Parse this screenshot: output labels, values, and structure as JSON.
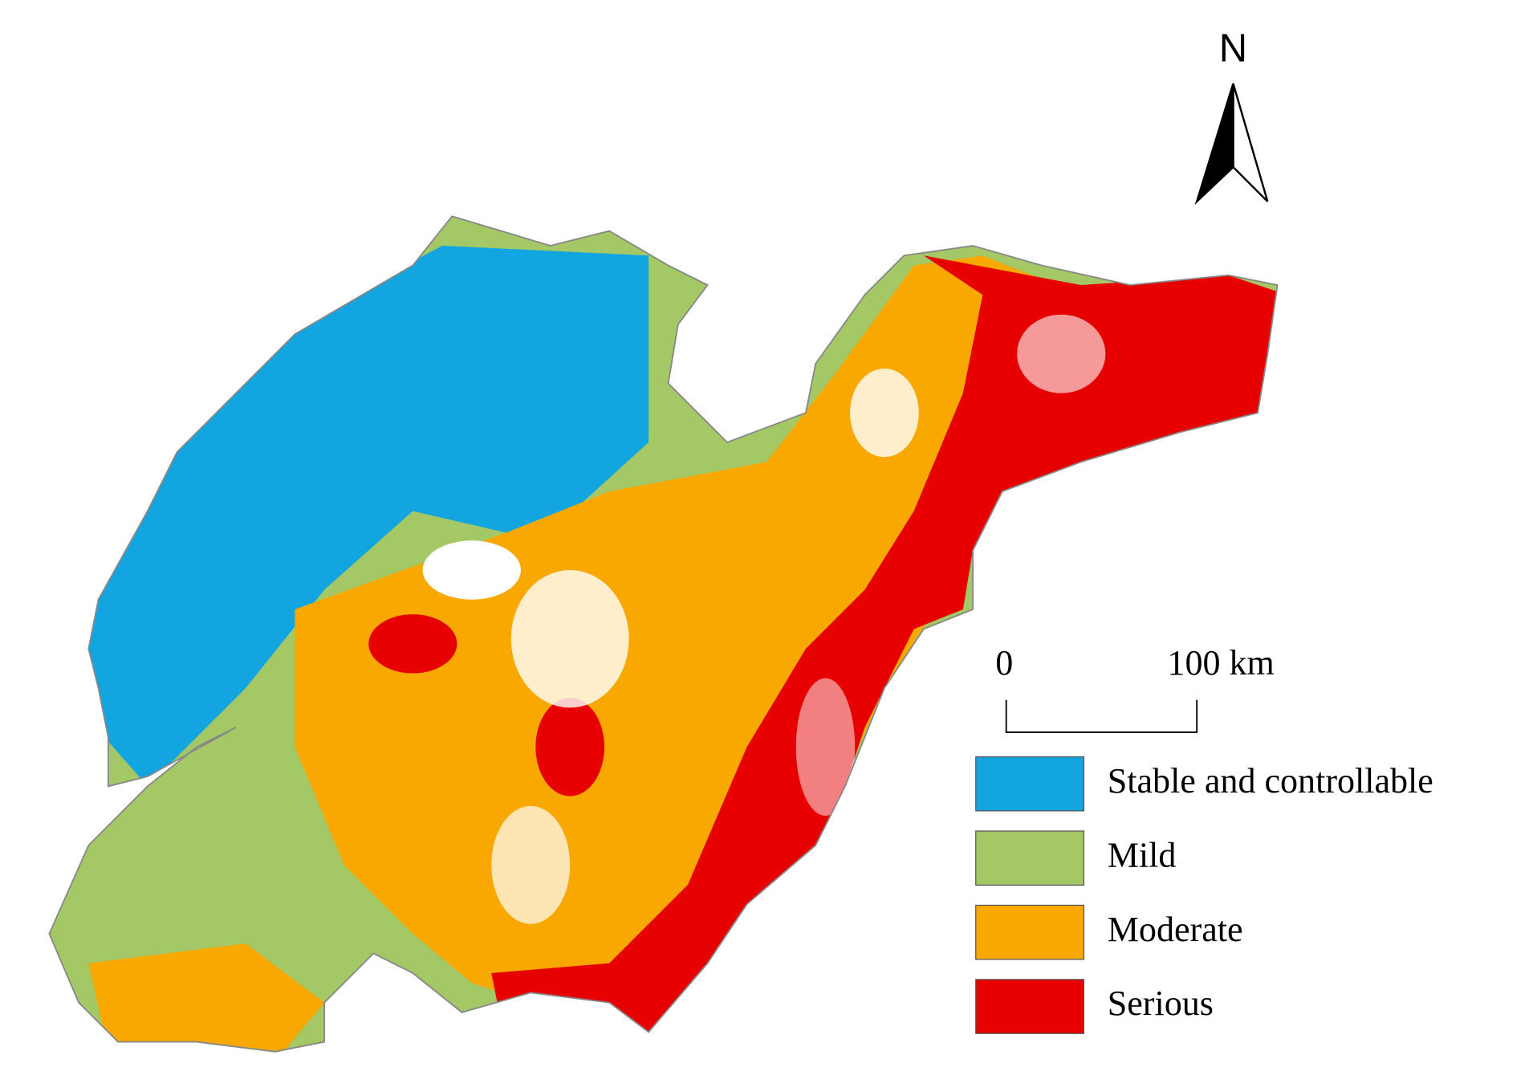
{
  "north_arrow": {
    "label": "N"
  },
  "scale_bar": {
    "start_label": "0",
    "end_label": "100 km"
  },
  "legend": {
    "items": [
      {
        "label": "Stable and controllable",
        "color": "#13a5e0"
      },
      {
        "label": "Mild",
        "color": "#a3c865"
      },
      {
        "label": "Moderate",
        "color": "#f8a800"
      },
      {
        "label": "Serious",
        "color": "#e60000"
      }
    ]
  }
}
